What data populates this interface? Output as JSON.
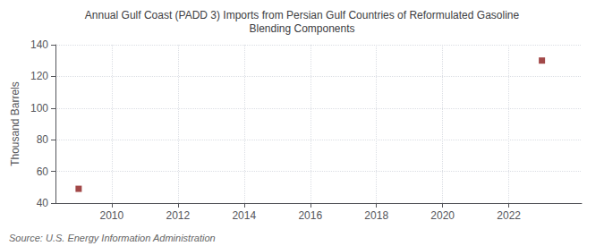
{
  "chart_data": {
    "type": "scatter",
    "title": "Annual Gulf Coast (PADD 3) Imports from Persian Gulf Countries of Reformulated Gasoline\nBlending Components",
    "ylabel": "Thousand Barrels",
    "annotations": [
      "Source: U.S. Energy Information Administration"
    ],
    "x": [
      2009,
      2023
    ],
    "values": [
      49,
      130
    ],
    "color": "#8B1A1A",
    "marker": "square",
    "xlim": [
      2008.3,
      2024.2
    ],
    "xticks": [
      2010,
      2012,
      2014,
      2016,
      2018,
      2020,
      2022
    ],
    "ylim": [
      40,
      140
    ],
    "yticks": [
      40,
      60,
      80,
      100,
      120,
      140
    ],
    "grid": true
  }
}
